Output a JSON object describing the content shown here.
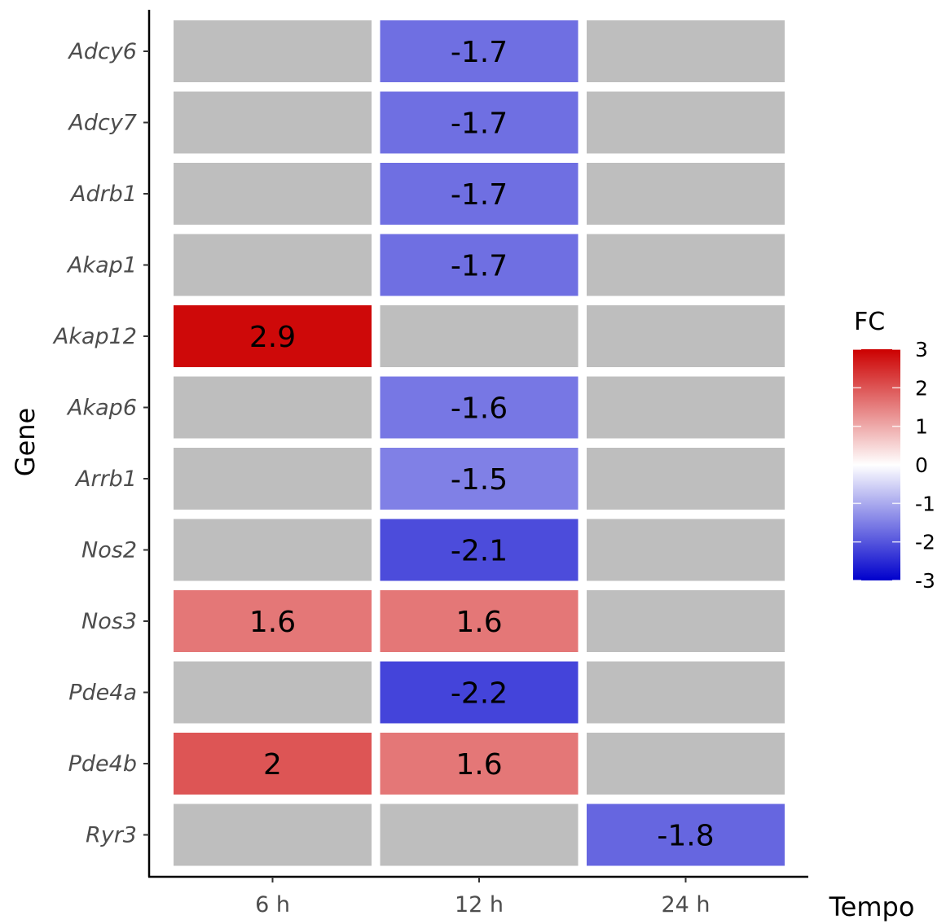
{
  "chart_data": {
    "type": "heatmap",
    "xlabel": "Tempo",
    "ylabel": "Gene",
    "x_categories": [
      "6 h",
      "12 h",
      "24 h"
    ],
    "y_categories": [
      "Adcy6",
      "Adcy7",
      "Adrb1",
      "Akap1",
      "Akap12",
      "Akap6",
      "Arrb1",
      "Nos2",
      "Nos3",
      "Pde4a",
      "Pde4b",
      "Ryr3"
    ],
    "values": [
      [
        null,
        -1.7,
        null
      ],
      [
        null,
        -1.7,
        null
      ],
      [
        null,
        -1.7,
        null
      ],
      [
        null,
        -1.7,
        null
      ],
      [
        2.9,
        null,
        null
      ],
      [
        null,
        -1.6,
        null
      ],
      [
        null,
        -1.5,
        null
      ],
      [
        null,
        -2.1,
        null
      ],
      [
        1.6,
        1.6,
        null
      ],
      [
        null,
        -2.2,
        null
      ],
      [
        2,
        1.6,
        null
      ],
      [
        null,
        null,
        -1.8
      ]
    ],
    "value_labels": [
      [
        "",
        "-1.7",
        ""
      ],
      [
        "",
        "-1.7",
        ""
      ],
      [
        "",
        "-1.7",
        ""
      ],
      [
        "",
        "-1.7",
        ""
      ],
      [
        "2.9",
        "",
        ""
      ],
      [
        "",
        "-1.6",
        ""
      ],
      [
        "",
        "-1.5",
        ""
      ],
      [
        "",
        "-2.1",
        ""
      ],
      [
        "1.6",
        "1.6",
        ""
      ],
      [
        "",
        "-2.2",
        ""
      ],
      [
        "2",
        "1.6",
        ""
      ],
      [
        "",
        "",
        "-1.8"
      ]
    ],
    "missing_color": "#bebebe",
    "legend": {
      "title": "FC",
      "min": -3,
      "max": 3,
      "ticks": [
        3,
        2,
        1,
        0,
        -1,
        -2,
        -3
      ],
      "tick_labels": [
        "3",
        "2",
        "1",
        "0",
        "-1",
        "-2",
        "-3"
      ],
      "low_color": "#0000cc",
      "mid_color": "#ffffff",
      "high_color": "#cc0000",
      "placement": "right"
    },
    "grid": false
  }
}
